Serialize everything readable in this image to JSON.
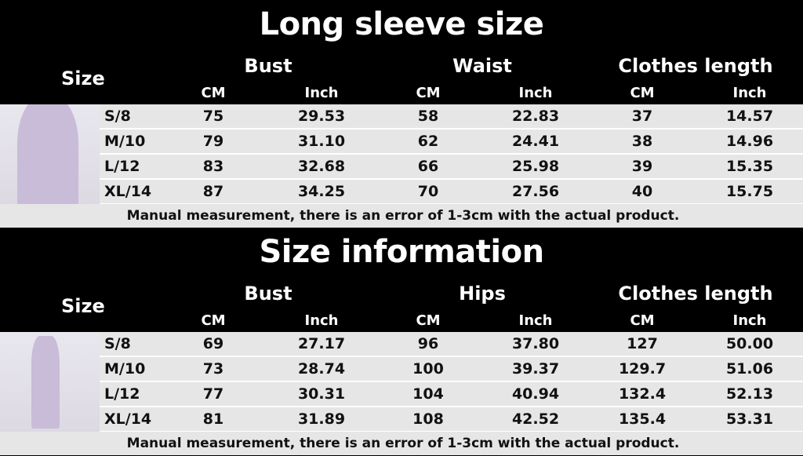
{
  "sections": [
    {
      "title": "Long sleeve size",
      "size_label": "Size",
      "groups": [
        "Bust",
        "Waist",
        "Clothes length"
      ],
      "units": [
        "CM",
        "Inch",
        "CM",
        "Inch",
        "CM",
        "Inch"
      ],
      "rows": [
        {
          "size": "S/8",
          "values": [
            "75",
            "29.53",
            "58",
            "22.83",
            "37",
            "14.57"
          ]
        },
        {
          "size": "M/10",
          "values": [
            "79",
            "31.10",
            "62",
            "24.41",
            "38",
            "14.96"
          ]
        },
        {
          "size": "L/12",
          "values": [
            "83",
            "32.68",
            "66",
            "25.98",
            "39",
            "15.35"
          ]
        },
        {
          "size": "XL/14",
          "values": [
            "87",
            "34.25",
            "70",
            "27.56",
            "40",
            "15.75"
          ]
        }
      ],
      "note": "Manual measurement, there is an error of 1-3cm with the actual product."
    },
    {
      "title": "Size information",
      "size_label": "Size",
      "groups": [
        "Bust",
        "Hips",
        "Clothes length"
      ],
      "units": [
        "CM",
        "Inch",
        "CM",
        "Inch",
        "CM",
        "Inch"
      ],
      "rows": [
        {
          "size": "S/8",
          "values": [
            "69",
            "27.17",
            "96",
            "37.80",
            "127",
            "50.00"
          ]
        },
        {
          "size": "M/10",
          "values": [
            "73",
            "28.74",
            "100",
            "39.37",
            "129.7",
            "51.06"
          ]
        },
        {
          "size": "L/12",
          "values": [
            "77",
            "30.31",
            "104",
            "40.94",
            "132.4",
            "52.13"
          ]
        },
        {
          "size": "XL/14",
          "values": [
            "81",
            "31.89",
            "108",
            "42.52",
            "135.4",
            "53.31"
          ]
        }
      ],
      "note": "Manual measurement, there is an error of 1-3cm with the actual product."
    }
  ],
  "colors": {
    "header_bg": "#000000",
    "row_bg": "#e6e6e6",
    "garment": "#c8bcd8"
  }
}
